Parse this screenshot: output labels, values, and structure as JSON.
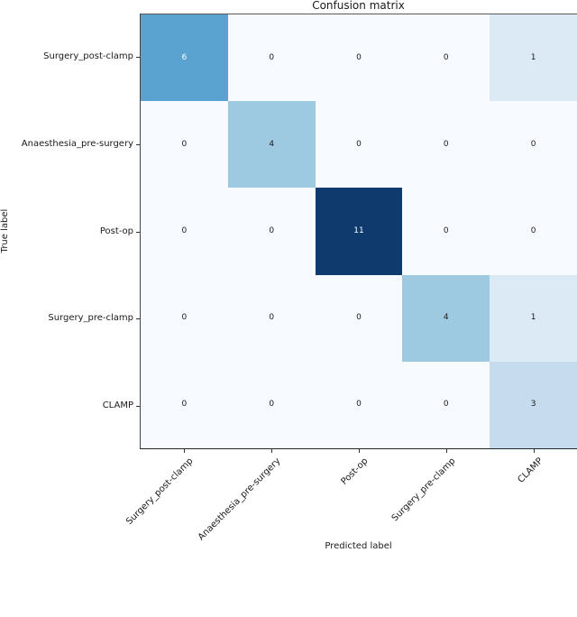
{
  "chart_data": {
    "type": "heatmap",
    "title": "Confusion matrix",
    "xlabel": "Predicted label",
    "ylabel": "True label",
    "x_categories": [
      "Surgery_post-clamp",
      "Anaesthesia_pre-surgery",
      "Post-op",
      "Surgery_pre-clamp",
      "CLAMP"
    ],
    "y_categories": [
      "Surgery_post-clamp",
      "Anaesthesia_pre-surgery",
      "Post-op",
      "Surgery_pre-clamp",
      "CLAMP"
    ],
    "values": [
      [
        6,
        0,
        0,
        0,
        1
      ],
      [
        0,
        4,
        0,
        0,
        0
      ],
      [
        0,
        0,
        11,
        0,
        0
      ],
      [
        0,
        0,
        0,
        4,
        1
      ],
      [
        0,
        0,
        0,
        0,
        3
      ]
    ],
    "value_range": [
      0,
      11
    ],
    "colormap": "Blues",
    "grid": false,
    "legend": "none"
  },
  "colors": {
    "value_fill": {
      "0": "#f7fbff",
      "1": "#dceaf6",
      "3": "#c6dbee",
      "4": "#9ecae1",
      "6": "#5aa2cf",
      "11": "#0e3a6d"
    },
    "cell_text_dark": "#1a1a1a",
    "cell_text_light": "#ffffff",
    "spine": "#333333"
  }
}
